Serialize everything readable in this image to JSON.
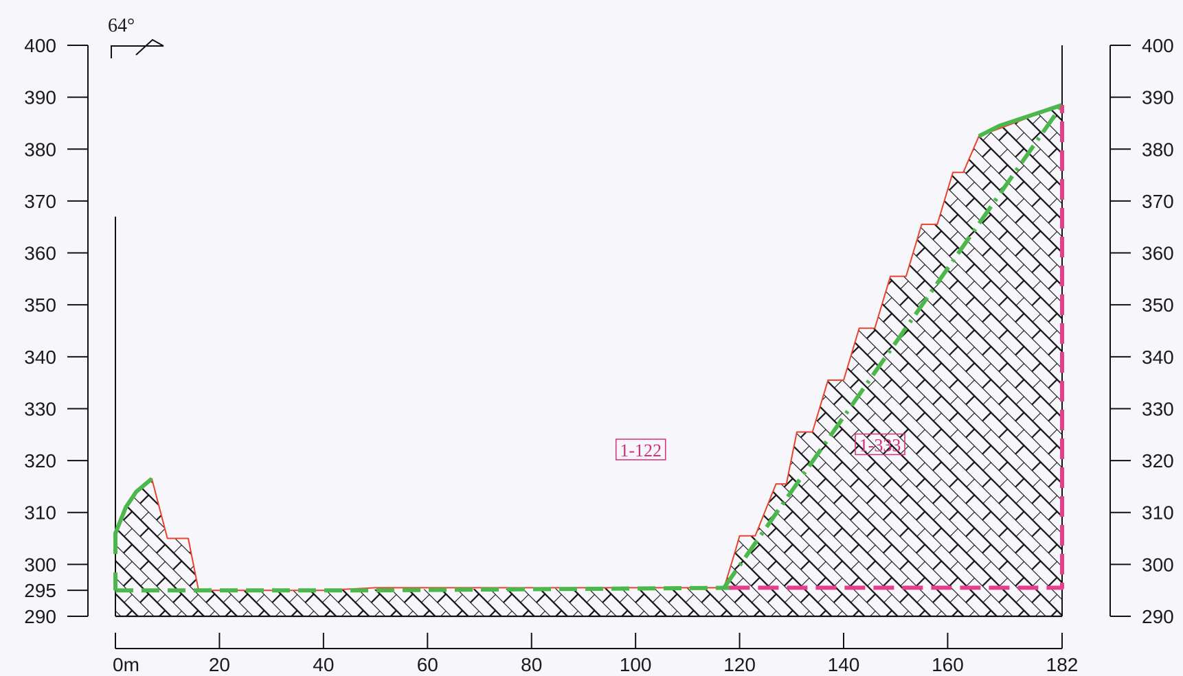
{
  "chart_data": {
    "type": "area",
    "title": "",
    "xlabel": "",
    "ylabel": "",
    "x_unit_suffix": "m",
    "xlim": [
      0,
      182
    ],
    "ylim": [
      290,
      400
    ],
    "x_ticks": [
      0,
      20,
      40,
      60,
      80,
      100,
      120,
      140,
      160,
      182
    ],
    "x_tick_labels": [
      "0m",
      "20",
      "40",
      "60",
      "80",
      "100",
      "120",
      "140",
      "160",
      "182"
    ],
    "y_ticks": [
      290,
      295,
      300,
      310,
      320,
      330,
      340,
      350,
      360,
      370,
      380,
      390,
      400
    ],
    "y_tick_labels_left": [
      "290",
      "295",
      "300",
      "310",
      "320",
      "330",
      "340",
      "350",
      "360",
      "370",
      "380",
      "390",
      "400"
    ],
    "y_tick_labels_right": [
      "290",
      "300",
      "310",
      "320",
      "330",
      "340",
      "350",
      "360",
      "370",
      "380",
      "390",
      "400"
    ],
    "angle_label": "64°",
    "grid": false,
    "series": [
      {
        "style": "red-solid",
        "color": "#e8432c",
        "points": [
          [
            0,
            306
          ],
          [
            2,
            311
          ],
          [
            4,
            314
          ],
          [
            7,
            316.5
          ],
          [
            10,
            305
          ],
          [
            14,
            305
          ],
          [
            16,
            295
          ],
          [
            40,
            295
          ],
          [
            50,
            295.5
          ],
          [
            117,
            295.5
          ],
          [
            119,
            302
          ],
          [
            120,
            305.5
          ],
          [
            123,
            305.5
          ],
          [
            127,
            315.5
          ],
          [
            129,
            315.5
          ],
          [
            131,
            325.5
          ],
          [
            134,
            325.5
          ],
          [
            137,
            335.5
          ],
          [
            140,
            335.5
          ],
          [
            143,
            345.5
          ],
          [
            146,
            345.5
          ],
          [
            149,
            355.5
          ],
          [
            152,
            355.5
          ],
          [
            155,
            365.5
          ],
          [
            158,
            365.5
          ],
          [
            161,
            375.5
          ],
          [
            163,
            375.5
          ],
          [
            166,
            382.5
          ],
          [
            182,
            388.5
          ]
        ]
      },
      {
        "style": "green-dashed",
        "color": "#4cb84c",
        "points": [
          [
            0,
            295
          ],
          [
            50,
            295
          ],
          [
            120,
            295.5
          ]
        ]
      },
      {
        "style": "green-dashed",
        "color": "#4cb84c",
        "points": [
          [
            0,
            295
          ],
          [
            0,
            300
          ]
        ]
      },
      {
        "style": "green-solid",
        "color": "#4cb84c",
        "points": [
          [
            0,
            302
          ],
          [
            0,
            306
          ],
          [
            2,
            311
          ],
          [
            4,
            314
          ],
          [
            7,
            316.5
          ]
        ]
      },
      {
        "style": "green-dashdot",
        "color": "#4cb84c",
        "points": [
          [
            117,
            295.5
          ],
          [
            182,
            388.5
          ]
        ]
      },
      {
        "style": "green-solid",
        "color": "#4cb84c",
        "points": [
          [
            166,
            382.5
          ],
          [
            170,
            384.5
          ],
          [
            182,
            388.5
          ]
        ]
      },
      {
        "style": "magenta-dashed",
        "color": "#e43e8c",
        "points": [
          [
            118,
            295.5
          ],
          [
            182,
            295.5
          ],
          [
            182,
            388.5
          ]
        ]
      }
    ],
    "hatched_areas": [
      [
        [
          0,
          290
        ],
        [
          0,
          306
        ],
        [
          2,
          311
        ],
        [
          4,
          314
        ],
        [
          7,
          316.5
        ],
        [
          10,
          305
        ],
        [
          14,
          305
        ],
        [
          16,
          295
        ],
        [
          117,
          295.5
        ],
        [
          119,
          302
        ],
        [
          120,
          305.5
        ],
        [
          123,
          305.5
        ],
        [
          127,
          315.5
        ],
        [
          129,
          315.5
        ],
        [
          131,
          325.5
        ],
        [
          134,
          325.5
        ],
        [
          137,
          335.5
        ],
        [
          140,
          335.5
        ],
        [
          143,
          345.5
        ],
        [
          146,
          345.5
        ],
        [
          149,
          355.5
        ],
        [
          152,
          355.5
        ],
        [
          155,
          365.5
        ],
        [
          158,
          365.5
        ],
        [
          161,
          375.5
        ],
        [
          163,
          375.5
        ],
        [
          166,
          382.5
        ],
        [
          170,
          384.5
        ],
        [
          182,
          388.5
        ],
        [
          182,
          290
        ]
      ]
    ],
    "annotations": [
      {
        "text": "1-122",
        "x": 101,
        "y": 322
      },
      {
        "text": "1-333",
        "x": 147,
        "y": 323
      }
    ]
  }
}
